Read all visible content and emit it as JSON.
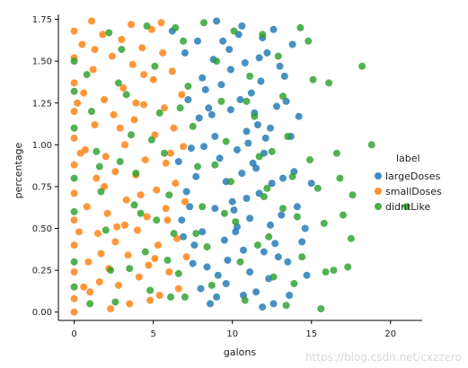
{
  "chart_data": {
    "type": "scatter",
    "xlabel": "galons",
    "ylabel": "percentage",
    "xlim": [
      -1.0,
      22.0
    ],
    "ylim": [
      -0.05,
      1.78
    ],
    "xticks": [
      "0",
      "5",
      "10",
      "15",
      "20"
    ],
    "xtick_values": [
      0,
      5,
      10,
      15,
      20
    ],
    "yticks": [
      "0.00",
      "0.25",
      "0.50",
      "0.75",
      "1.00",
      "1.25",
      "1.50",
      "1.75"
    ],
    "ytick_values": [
      0.0,
      0.25,
      0.5,
      0.75,
      1.0,
      1.25,
      1.5,
      1.75
    ],
    "grid": false,
    "legend_title": "label",
    "legend_placement": "right",
    "series": [
      {
        "name": "largeDoses",
        "color": "#1f77b4",
        "points": [
          [
            6.2,
            1.68
          ],
          [
            7.0,
            1.55
          ],
          [
            7.8,
            1.62
          ],
          [
            8.1,
            1.4
          ],
          [
            8.5,
            1.22
          ],
          [
            8.9,
            1.05
          ],
          [
            9.2,
            0.92
          ],
          [
            9.6,
            0.78
          ],
          [
            10.0,
            0.66
          ],
          [
            10.3,
            0.51
          ],
          [
            10.7,
            0.37
          ],
          [
            11.1,
            0.24
          ],
          [
            11.5,
            0.12
          ],
          [
            11.9,
            0.03
          ],
          [
            12.3,
            0.2
          ],
          [
            12.7,
            0.41
          ],
          [
            13.1,
            0.58
          ],
          [
            12.5,
            0.77
          ],
          [
            12.0,
            0.95
          ],
          [
            11.6,
            1.12
          ],
          [
            11.2,
            1.31
          ],
          [
            10.8,
            1.49
          ],
          [
            10.4,
            1.66
          ],
          [
            9.8,
            1.57
          ],
          [
            9.3,
            1.36
          ],
          [
            8.7,
            1.18
          ],
          [
            8.2,
            0.99
          ],
          [
            7.7,
            0.81
          ],
          [
            7.3,
            0.63
          ],
          [
            6.9,
            0.45
          ],
          [
            7.5,
            0.29
          ],
          [
            8.0,
            0.14
          ],
          [
            8.6,
            0.05
          ],
          [
            9.1,
            0.22
          ],
          [
            9.5,
            0.43
          ],
          [
            10.1,
            0.61
          ],
          [
            10.6,
            0.83
          ],
          [
            11.0,
            1.01
          ],
          [
            11.4,
            1.19
          ],
          [
            11.8,
            1.38
          ],
          [
            12.2,
            1.55
          ],
          [
            12.6,
            1.69
          ],
          [
            13.0,
            1.47
          ],
          [
            13.4,
            1.26
          ],
          [
            13.7,
            1.05
          ],
          [
            13.9,
            0.84
          ],
          [
            14.1,
            0.63
          ],
          [
            14.4,
            0.42
          ],
          [
            14.7,
            0.22
          ],
          [
            13.6,
            0.1
          ],
          [
            12.9,
            0.33
          ],
          [
            12.4,
            0.52
          ],
          [
            11.7,
            0.71
          ],
          [
            11.3,
            0.89
          ],
          [
            10.9,
            1.08
          ],
          [
            10.5,
            1.27
          ],
          [
            9.9,
            1.45
          ],
          [
            9.4,
            1.62
          ],
          [
            8.8,
            1.51
          ],
          [
            8.3,
            1.33
          ],
          [
            7.9,
            1.16
          ],
          [
            7.4,
            0.98
          ],
          [
            7.1,
            0.72
          ],
          [
            6.8,
            0.55
          ],
          [
            7.6,
            0.4
          ],
          [
            8.4,
            0.27
          ],
          [
            9.0,
            0.09
          ],
          [
            9.7,
            0.31
          ],
          [
            10.2,
            0.48
          ],
          [
            10.9,
            0.68
          ],
          [
            11.5,
            0.86
          ],
          [
            12.1,
            1.04
          ],
          [
            12.8,
            1.23
          ],
          [
            13.3,
            1.41
          ],
          [
            13.8,
            1.6
          ],
          [
            9.0,
            1.74
          ],
          [
            10.6,
            1.71
          ],
          [
            11.9,
            1.64
          ],
          [
            12.4,
            1.1
          ],
          [
            11.1,
            0.56
          ],
          [
            9.6,
            0.17
          ],
          [
            8.1,
            0.48
          ],
          [
            7.2,
            1.27
          ],
          [
            6.6,
            0.9
          ],
          [
            10.3,
            0.97
          ],
          [
            12.0,
            0.36
          ],
          [
            13.2,
            0.8
          ],
          [
            14.2,
            1.17
          ],
          [
            14.6,
            0.5
          ],
          [
            15.0,
            0.77
          ],
          [
            8.9,
            0.62
          ],
          [
            9.9,
            1.21
          ],
          [
            11.7,
            1.52
          ],
          [
            10.7,
            0.1
          ],
          [
            12.6,
            0.05
          ],
          [
            13.5,
            0.3
          ]
        ]
      },
      {
        "name": "smallDoses",
        "color": "#ff7f0e",
        "points": [
          [
            0.0,
            1.68
          ],
          [
            0.0,
            1.52
          ],
          [
            0.0,
            1.37
          ],
          [
            0.0,
            1.2
          ],
          [
            0.0,
            1.04
          ],
          [
            0.0,
            0.88
          ],
          [
            0.0,
            0.71
          ],
          [
            0.0,
            0.55
          ],
          [
            0.0,
            0.4
          ],
          [
            0.0,
            0.24
          ],
          [
            0.0,
            0.08
          ],
          [
            0.0,
            0.0
          ],
          [
            0.5,
            1.6
          ],
          [
            0.6,
            1.31
          ],
          [
            0.7,
            0.97
          ],
          [
            0.8,
            0.63
          ],
          [
            0.9,
            0.3
          ],
          [
            1.0,
            0.12
          ],
          [
            1.2,
            1.45
          ],
          [
            1.3,
            1.12
          ],
          [
            1.4,
            0.8
          ],
          [
            1.5,
            0.47
          ],
          [
            1.6,
            0.18
          ],
          [
            1.8,
            1.66
          ],
          [
            1.9,
            1.27
          ],
          [
            2.0,
            0.93
          ],
          [
            2.1,
            0.59
          ],
          [
            2.2,
            0.26
          ],
          [
            2.4,
            1.53
          ],
          [
            2.5,
            1.18
          ],
          [
            2.6,
            0.84
          ],
          [
            2.7,
            0.51
          ],
          [
            2.8,
            0.16
          ],
          [
            3.0,
            1.63
          ],
          [
            3.1,
            1.34
          ],
          [
            3.2,
            1.0
          ],
          [
            3.3,
            0.67
          ],
          [
            3.4,
            0.34
          ],
          [
            3.5,
            0.05
          ],
          [
            3.7,
            1.48
          ],
          [
            3.8,
            1.15
          ],
          [
            3.9,
            0.82
          ],
          [
            4.0,
            0.49
          ],
          [
            4.1,
            0.21
          ],
          [
            4.3,
            1.58
          ],
          [
            4.4,
            1.24
          ],
          [
            4.5,
            0.91
          ],
          [
            4.6,
            0.57
          ],
          [
            4.7,
            0.28
          ],
          [
            4.9,
            1.69
          ],
          [
            5.0,
            1.39
          ],
          [
            5.1,
            1.06
          ],
          [
            5.2,
            0.73
          ],
          [
            5.3,
            0.4
          ],
          [
            5.4,
            0.1
          ],
          [
            5.6,
            1.55
          ],
          [
            5.7,
            1.22
          ],
          [
            5.8,
            0.89
          ],
          [
            5.9,
            0.55
          ],
          [
            6.0,
            0.24
          ],
          [
            6.2,
            1.44
          ],
          [
            6.3,
            1.1
          ],
          [
            6.4,
            0.77
          ],
          [
            6.5,
            0.44
          ],
          [
            6.6,
            0.14
          ],
          [
            6.8,
            1.3
          ],
          [
            6.9,
            0.99
          ],
          [
            7.0,
            0.66
          ],
          [
            7.1,
            0.33
          ],
          [
            1.1,
            1.74
          ],
          [
            2.3,
            0.02
          ],
          [
            3.6,
            1.72
          ],
          [
            4.8,
            0.07
          ],
          [
            5.5,
            1.73
          ],
          [
            0.4,
            0.95
          ],
          [
            1.7,
            0.35
          ],
          [
            2.9,
            1.1
          ],
          [
            4.2,
            0.7
          ],
          [
            0.3,
            0.48
          ],
          [
            1.3,
            1.57
          ],
          [
            2.6,
            0.42
          ],
          [
            3.9,
            1.25
          ],
          [
            5.1,
            0.32
          ],
          [
            6.1,
            0.95
          ],
          [
            0.2,
            1.25
          ],
          [
            0.6,
            0.15
          ],
          [
            1.9,
            0.75
          ],
          [
            3.2,
            0.52
          ],
          [
            4.4,
            1.42
          ],
          [
            5.8,
            0.62
          ]
        ]
      },
      {
        "name": "didntLike",
        "color": "#2ca02c",
        "points": [
          [
            0.0,
            1.5
          ],
          [
            0.0,
            1.32
          ],
          [
            0.0,
            1.1
          ],
          [
            0.0,
            0.8
          ],
          [
            0.0,
            0.6
          ],
          [
            0.0,
            0.3
          ],
          [
            0.0,
            0.15
          ],
          [
            0.8,
            1.42
          ],
          [
            1.1,
            1.2
          ],
          [
            1.4,
            0.96
          ],
          [
            1.7,
            0.72
          ],
          [
            2.0,
            0.49
          ],
          [
            2.3,
            0.25
          ],
          [
            2.6,
            0.06
          ],
          [
            3.0,
            1.57
          ],
          [
            3.3,
            1.3
          ],
          [
            3.6,
            1.06
          ],
          [
            3.9,
            0.83
          ],
          [
            4.2,
            0.59
          ],
          [
            4.5,
            0.36
          ],
          [
            4.8,
            0.13
          ],
          [
            5.1,
            1.47
          ],
          [
            5.4,
            1.19
          ],
          [
            5.7,
            0.95
          ],
          [
            6.0,
            0.7
          ],
          [
            6.3,
            0.47
          ],
          [
            6.6,
            0.23
          ],
          [
            6.9,
            1.62
          ],
          [
            7.2,
            1.35
          ],
          [
            7.5,
            1.11
          ],
          [
            7.8,
            0.87
          ],
          [
            8.1,
            0.63
          ],
          [
            8.4,
            0.39
          ],
          [
            8.7,
            0.16
          ],
          [
            9.0,
            1.5
          ],
          [
            9.3,
            1.26
          ],
          [
            9.6,
            1.02
          ],
          [
            9.9,
            0.78
          ],
          [
            10.2,
            0.54
          ],
          [
            10.5,
            0.3
          ],
          [
            10.8,
            0.07
          ],
          [
            11.1,
            1.41
          ],
          [
            11.4,
            1.17
          ],
          [
            11.7,
            0.93
          ],
          [
            12.0,
            0.69
          ],
          [
            12.3,
            0.45
          ],
          [
            12.6,
            0.21
          ],
          [
            12.9,
            1.53
          ],
          [
            13.2,
            1.29
          ],
          [
            13.5,
            1.05
          ],
          [
            13.8,
            0.81
          ],
          [
            14.1,
            0.57
          ],
          [
            14.4,
            0.33
          ],
          [
            14.8,
            1.62
          ],
          [
            15.1,
            1.39
          ],
          [
            15.4,
            0.74
          ],
          [
            15.8,
            0.53
          ],
          [
            16.1,
            1.37
          ],
          [
            16.6,
            0.95
          ],
          [
            17.0,
            0.58
          ],
          [
            17.5,
            0.44
          ],
          [
            18.2,
            1.47
          ],
          [
            18.8,
            1.0
          ],
          [
            17.3,
            0.27
          ],
          [
            15.6,
            0.02
          ],
          [
            14.3,
            1.7
          ],
          [
            13.4,
            0.04
          ],
          [
            11.9,
            1.66
          ],
          [
            10.1,
            1.68
          ],
          [
            8.2,
            1.73
          ],
          [
            6.4,
            1.7
          ],
          [
            4.6,
            1.71
          ],
          [
            2.2,
            1.67
          ],
          [
            1.0,
            0.05
          ],
          [
            3.5,
            0.26
          ],
          [
            5.2,
            0.55
          ],
          [
            7.0,
            0.09
          ],
          [
            8.9,
            0.88
          ],
          [
            12.5,
            0.96
          ],
          [
            14.9,
            0.91
          ],
          [
            16.8,
            0.8
          ],
          [
            17.6,
            0.7
          ],
          [
            15.9,
            0.24
          ],
          [
            13.9,
            0.17
          ],
          [
            11.6,
            0.4
          ],
          [
            9.5,
            0.59
          ],
          [
            7.7,
            0.47
          ],
          [
            5.9,
            0.31
          ],
          [
            3.8,
            0.64
          ],
          [
            1.6,
            0.87
          ],
          [
            21.0,
            0.63
          ],
          [
            2.8,
            1.37
          ],
          [
            4.9,
            1.03
          ],
          [
            6.7,
            1.22
          ],
          [
            10.9,
            1.26
          ],
          [
            12.2,
            0.74
          ],
          [
            16.4,
            0.25
          ],
          [
            13.2,
            0.62
          ],
          [
            6.1,
            0.09
          ],
          [
            2.9,
            0.9
          ]
        ]
      }
    ]
  },
  "legend": {
    "title": "label",
    "items": [
      "largeDoses",
      "smallDoses",
      "didntLike"
    ]
  },
  "watermark": "https://blog.csdn.net/cxzzero"
}
